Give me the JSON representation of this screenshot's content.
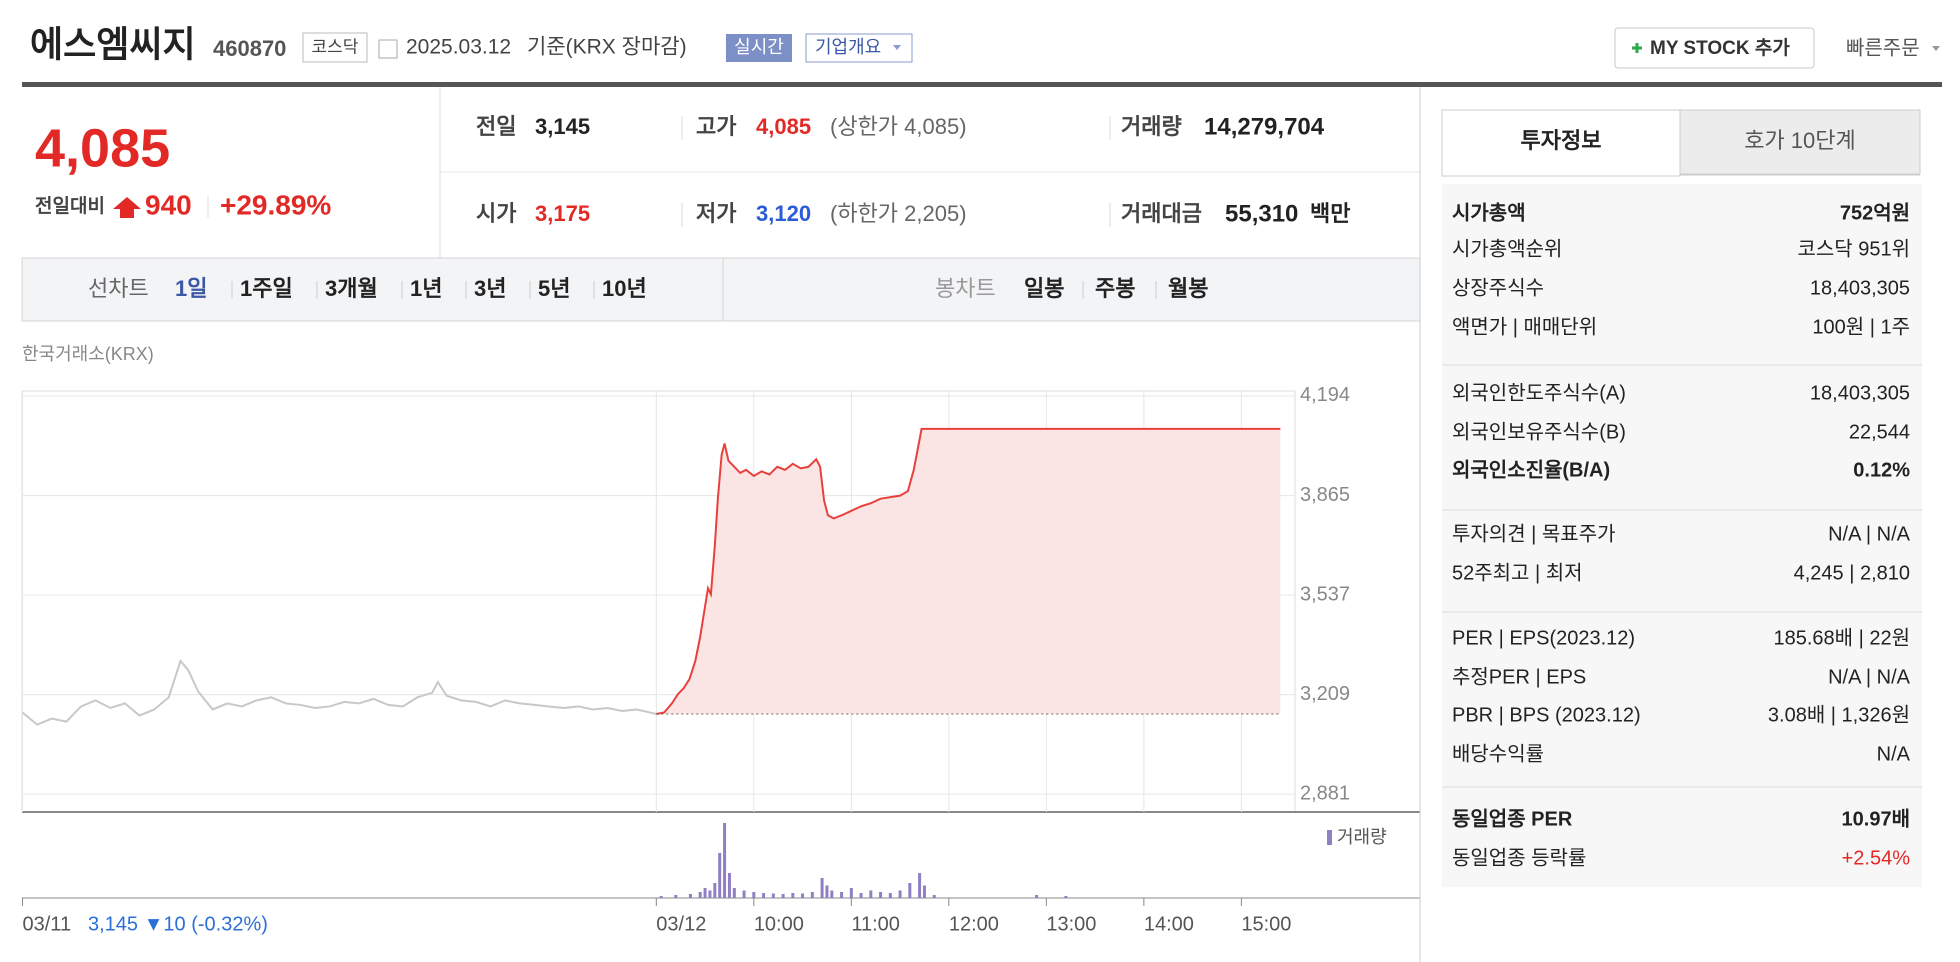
{
  "header": {
    "name": "에스엠씨지",
    "code": "460870",
    "market": "코스닥",
    "date": "2025.03.12",
    "basis": "기준(KRX 장마감)",
    "realtime": "실시간",
    "company_info": "기업개요",
    "my_stock": "MY STOCK 추가",
    "quick_order": "빠른주문"
  },
  "quote": {
    "price": "4,085",
    "change_label": "전일대비",
    "change": "940",
    "change_pct": "+29.89%",
    "items": [
      {
        "label": "전일",
        "value": "3,145"
      },
      {
        "label": "고가",
        "value": "4,085",
        "note": "(상한가 4,085)"
      },
      {
        "label": "거래량",
        "value": "14,279,704"
      },
      {
        "label": "시가",
        "value": "3,175"
      },
      {
        "label": "저가",
        "value": "3,120",
        "note": "(하한가 2,205)"
      },
      {
        "label": "거래대금",
        "value": "55,310",
        "unit": "백만"
      }
    ]
  },
  "periods": {
    "line_label": "선차트",
    "line": [
      "1일",
      "1주일",
      "3개월",
      "1년",
      "3년",
      "5년",
      "10년"
    ],
    "candle_label": "봉차트",
    "candle": [
      "일봉",
      "주봉",
      "월봉"
    ]
  },
  "chart_data": {
    "type": "line",
    "subtitle": "한국거래소(KRX)",
    "xlim": [
      0,
      13.05
    ],
    "ylim": [
      2822,
      4210
    ],
    "xticks": [
      {
        "value": 0,
        "label": "03/11"
      },
      {
        "value": 6.5,
        "label": "03/12"
      },
      {
        "value": 7.5,
        "label": "10:00"
      },
      {
        "value": 8.5,
        "label": "11:00"
      },
      {
        "value": 9.5,
        "label": "12:00"
      },
      {
        "value": 10.5,
        "label": "13:00"
      },
      {
        "value": 11.5,
        "label": "14:00"
      },
      {
        "value": 12.5,
        "label": "15:00"
      }
    ],
    "yticks": [
      {
        "value": 4194,
        "label": "4,194"
      },
      {
        "value": 3865,
        "label": "3,865"
      },
      {
        "value": 3537,
        "label": "3,537"
      },
      {
        "value": 3209,
        "label": "3,209"
      },
      {
        "value": 2881,
        "label": "2,881"
      }
    ],
    "grid": true,
    "baseline": 3145,
    "series": [
      {
        "color": "#c8c8c8",
        "x": [
          0,
          0.15,
          0.3,
          0.45,
          0.6,
          0.75,
          0.9,
          1.05,
          1.2,
          1.35,
          1.5,
          1.62,
          1.7,
          1.8,
          1.95,
          2.1,
          2.25,
          2.4,
          2.55,
          2.7,
          2.85,
          3.0,
          3.15,
          3.3,
          3.45,
          3.6,
          3.75,
          3.9,
          4.05,
          4.2,
          4.26,
          4.35,
          4.5,
          4.65,
          4.8,
          4.95,
          5.1,
          5.25,
          5.4,
          5.55,
          5.7,
          5.85,
          6.0,
          6.15,
          6.3,
          6.5
        ],
        "values": [
          3150,
          3110,
          3130,
          3120,
          3170,
          3190,
          3165,
          3180,
          3140,
          3160,
          3200,
          3320,
          3290,
          3220,
          3160,
          3180,
          3170,
          3190,
          3200,
          3180,
          3175,
          3165,
          3170,
          3185,
          3180,
          3195,
          3175,
          3170,
          3200,
          3215,
          3250,
          3205,
          3190,
          3185,
          3170,
          3190,
          3180,
          3175,
          3170,
          3165,
          3170,
          3160,
          3165,
          3155,
          3160,
          3145
        ]
      },
      {
        "color": "#e8403c",
        "fill": "#fbe4e4",
        "x": [
          6.5,
          6.58,
          6.66,
          6.72,
          6.78,
          6.84,
          6.9,
          6.95,
          7.0,
          7.03,
          7.06,
          7.1,
          7.13,
          7.17,
          7.2,
          7.24,
          7.3,
          7.36,
          7.42,
          7.5,
          7.58,
          7.66,
          7.74,
          7.82,
          7.9,
          7.98,
          8.06,
          8.14,
          8.18,
          8.22,
          8.26,
          8.32,
          8.4,
          8.5,
          8.6,
          8.7,
          8.8,
          8.9,
          9.0,
          9.08,
          9.14,
          9.2,
          9.22,
          10,
          11,
          12,
          12.9
        ],
        "values": [
          3145,
          3150,
          3180,
          3210,
          3230,
          3260,
          3320,
          3400,
          3500,
          3560,
          3540,
          3700,
          3850,
          4000,
          4037,
          3980,
          3960,
          3940,
          3950,
          3930,
          3945,
          3935,
          3960,
          3950,
          3970,
          3955,
          3960,
          3985,
          3960,
          3850,
          3800,
          3790,
          3800,
          3815,
          3830,
          3840,
          3855,
          3860,
          3865,
          3880,
          3950,
          4050,
          4085,
          4085,
          4085,
          4085,
          4085
        ]
      }
    ],
    "volume": {
      "name": "거래량",
      "color": "#8f7fc4",
      "ylim": [
        0,
        1600000
      ],
      "x": [
        6.55,
        6.7,
        6.85,
        6.95,
        7.0,
        7.05,
        7.1,
        7.15,
        7.2,
        7.25,
        7.3,
        7.4,
        7.5,
        7.6,
        7.7,
        7.8,
        7.9,
        8.0,
        8.1,
        8.2,
        8.25,
        8.3,
        8.4,
        8.5,
        8.6,
        8.7,
        8.8,
        8.9,
        9.0,
        9.1,
        9.2,
        9.25,
        9.35,
        10.4,
        10.7
      ],
      "values": [
        40000,
        60000,
        80000,
        120000,
        200000,
        150000,
        300000,
        900000,
        1500000,
        500000,
        200000,
        150000,
        120000,
        100000,
        90000,
        80000,
        100000,
        90000,
        120000,
        400000,
        250000,
        150000,
        120000,
        200000,
        100000,
        150000,
        120000,
        100000,
        150000,
        300000,
        500000,
        250000,
        60000,
        60000,
        40000
      ]
    },
    "annotation": "3,145 ▼10 (-0.32%)"
  },
  "sidebar": {
    "tabs": [
      "투자정보",
      "호가 10단계"
    ],
    "groups": [
      [
        {
          "label": "시가총액",
          "value": "752억원"
        },
        {
          "label": "시가총액순위",
          "value": "코스닥 951위"
        },
        {
          "label": "상장주식수",
          "value": "18,403,305"
        },
        {
          "label": "액면가 | 매매단위",
          "value": "100원 | 1주"
        }
      ],
      [
        {
          "label": "외국인한도주식수(A)",
          "value": "18,403,305"
        },
        {
          "label": "외국인보유주식수(B)",
          "value": "22,544"
        },
        {
          "label": "외국인소진율(B/A)",
          "value": "0.12%"
        }
      ],
      [
        {
          "label": "투자의견 | 목표주가",
          "value": "N/A | N/A"
        },
        {
          "label": "52주최고 | 최저",
          "value": "4,245 | 2,810"
        }
      ],
      [
        {
          "label": "PER | EPS(2023.12)",
          "value": "185.68배 | 22원"
        },
        {
          "label": "추정PER | EPS",
          "value": "N/A | N/A"
        },
        {
          "label": "PBR | BPS (2023.12)",
          "value": "3.08배 | 1,326원"
        },
        {
          "label": "배당수익률",
          "value": "N/A"
        }
      ],
      [
        {
          "label": "동일업종 PER",
          "value": "10.97배"
        },
        {
          "label": "동일업종 등락률",
          "value": "+2.54%"
        }
      ]
    ]
  }
}
